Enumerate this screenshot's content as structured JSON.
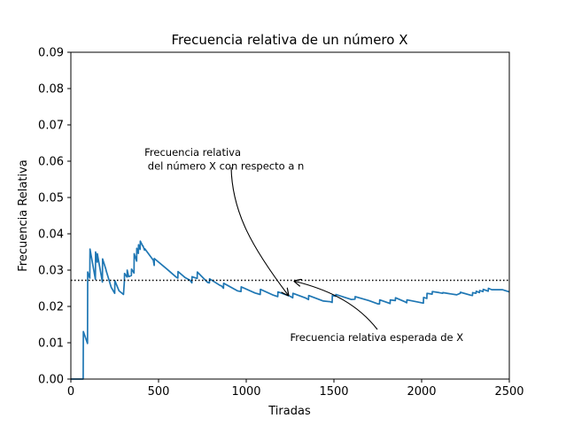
{
  "chart_data": {
    "type": "line",
    "title": "Frecuencia relativa de un número X",
    "xlabel": "Tiradas",
    "ylabel": "Frecuencia Relativa",
    "xlim": [
      0,
      2500
    ],
    "ylim": [
      0,
      0.09
    ],
    "xticks": [
      0,
      500,
      1000,
      1500,
      2000,
      2500
    ],
    "xtick_labels": [
      "0",
      "500",
      "1000",
      "1500",
      "2000",
      "2500"
    ],
    "yticks": [
      0,
      0.01,
      0.02,
      0.03,
      0.04,
      0.05,
      0.06,
      0.07,
      0.08,
      0.09
    ],
    "ytick_labels": [
      "0.00",
      "0.01",
      "0.02",
      "0.03",
      "0.04",
      "0.05",
      "0.06",
      "0.07",
      "0.08",
      "0.09"
    ],
    "grid": false,
    "colors": {
      "series": "#1f77b4",
      "reference": "#000000"
    },
    "series": [
      {
        "style": "solid",
        "x": [
          1,
          70,
          71,
          95,
          96,
          108,
          109,
          140,
          141,
          150,
          151,
          180,
          181,
          200,
          201,
          230,
          250,
          251,
          275,
          300,
          305,
          306,
          320,
          321,
          330,
          345,
          346,
          360,
          361,
          375,
          376,
          385,
          386,
          395,
          396,
          410,
          411,
          420,
          421,
          470,
          475,
          476,
          550,
          600,
          610,
          611,
          650,
          680,
          690,
          691,
          720,
          721,
          780,
          790,
          791,
          850,
          860,
          870,
          871,
          950,
          970,
          971,
          1050,
          1080,
          1081,
          1150,
          1180,
          1181,
          1250,
          1265,
          1266,
          1340,
          1355,
          1356,
          1440,
          1480,
          1490,
          1491,
          1510,
          1511,
          1600,
          1620,
          1621,
          1700,
          1750,
          1760,
          1761,
          1820,
          1821,
          1850,
          1851,
          1900,
          1915,
          1916,
          1980,
          2010,
          2011,
          2030,
          2031,
          2060,
          2061,
          2100,
          2120,
          2121,
          2200,
          2220,
          2221,
          2280,
          2290,
          2291,
          2310,
          2311,
          2330,
          2331,
          2350,
          2351,
          2380,
          2381,
          2400,
          2460,
          2500
        ],
        "y": [
          0.0,
          0.0,
          0.0131,
          0.0098,
          0.0295,
          0.0278,
          0.0358,
          0.0275,
          0.035,
          0.0322,
          0.0345,
          0.0267,
          0.0331,
          0.0302,
          0.0299,
          0.0253,
          0.0236,
          0.0271,
          0.0243,
          0.0233,
          0.0268,
          0.0291,
          0.0281,
          0.03,
          0.0282,
          0.0285,
          0.0303,
          0.0292,
          0.0345,
          0.0325,
          0.036,
          0.0346,
          0.037,
          0.0357,
          0.038,
          0.0366,
          0.0367,
          0.0355,
          0.0359,
          0.0327,
          0.0313,
          0.0332,
          0.0302,
          0.0281,
          0.0278,
          0.0296,
          0.028,
          0.0272,
          0.0265,
          0.0282,
          0.0277,
          0.0295,
          0.0266,
          0.0265,
          0.0276,
          0.0258,
          0.0256,
          0.025,
          0.0264,
          0.0243,
          0.0241,
          0.0254,
          0.0237,
          0.0233,
          0.0247,
          0.0232,
          0.0227,
          0.024,
          0.0228,
          0.0224,
          0.0236,
          0.0223,
          0.0219,
          0.023,
          0.0215,
          0.0213,
          0.0211,
          0.023,
          0.0228,
          0.0233,
          0.0219,
          0.022,
          0.0227,
          0.0216,
          0.0207,
          0.0207,
          0.0218,
          0.0208,
          0.0218,
          0.0216,
          0.0224,
          0.0214,
          0.021,
          0.0218,
          0.0212,
          0.0209,
          0.0225,
          0.0222,
          0.0236,
          0.0234,
          0.0241,
          0.0238,
          0.0236,
          0.0238,
          0.0232,
          0.0236,
          0.0239,
          0.0231,
          0.023,
          0.0238,
          0.0236,
          0.0242,
          0.0238,
          0.0244,
          0.0241,
          0.0247,
          0.0242,
          0.025,
          0.0246,
          0.0246,
          0.024
        ]
      },
      {
        "style": "dotted",
        "x": [
          0,
          2500
        ],
        "y": [
          0.0272,
          0.0272
        ]
      }
    ],
    "annotations": [
      {
        "lines": [
          "Frecuencia relativa",
          " del número X con respecto a n"
        ],
        "point": [
          1240,
          0.0233
        ],
        "text_anchor_data": [
          420,
          0.0615
        ]
      },
      {
        "lines": [
          "Frecuencia relativa esperada de X"
        ],
        "point": [
          1270,
          0.0272
        ],
        "text_anchor_data": [
          1250,
          0.0105
        ]
      }
    ]
  }
}
